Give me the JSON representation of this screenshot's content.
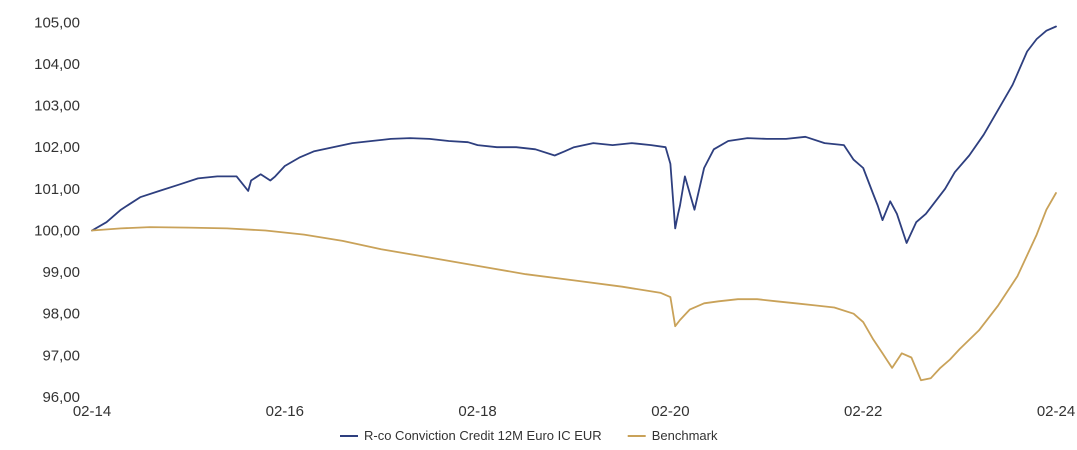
{
  "chart_data": {
    "type": "line",
    "title": "",
    "xlabel": "",
    "ylabel": "",
    "x_tick_labels": [
      "02-14",
      "02-16",
      "02-18",
      "02-20",
      "02-22",
      "02-24"
    ],
    "x_tick_values": [
      2014.0,
      2016.0,
      2018.0,
      2020.0,
      2022.0,
      2024.0
    ],
    "y_tick_labels": [
      "96,00",
      "97,00",
      "98,00",
      "99,00",
      "100,00",
      "101,00",
      "102,00",
      "103,00",
      "104,00",
      "105,00"
    ],
    "y_tick_values": [
      96,
      97,
      98,
      99,
      100,
      101,
      102,
      103,
      104,
      105
    ],
    "xlim": [
      2014.0,
      2024.0
    ],
    "ylim": [
      96,
      105.2
    ],
    "grid": false,
    "legend_position": "bottom-center",
    "series": [
      {
        "name": "R-co Conviction Credit 12M Euro IC EUR",
        "color": "#2E3F7F",
        "x": [
          2014.0,
          2014.15,
          2014.3,
          2014.5,
          2014.7,
          2014.9,
          2015.1,
          2015.3,
          2015.5,
          2015.62,
          2015.65,
          2015.75,
          2015.85,
          2015.9,
          2016.0,
          2016.15,
          2016.3,
          2016.5,
          2016.7,
          2016.9,
          2017.1,
          2017.3,
          2017.5,
          2017.7,
          2017.9,
          2018.0,
          2018.2,
          2018.4,
          2018.6,
          2018.8,
          2018.9,
          2019.0,
          2019.2,
          2019.4,
          2019.6,
          2019.8,
          2019.95,
          2020.0,
          2020.05,
          2020.08,
          2020.1,
          2020.15,
          2020.25,
          2020.35,
          2020.45,
          2020.6,
          2020.8,
          2021.0,
          2021.2,
          2021.4,
          2021.6,
          2021.8,
          2021.9,
          2022.0,
          2022.05,
          2022.1,
          2022.15,
          2022.2,
          2022.28,
          2022.35,
          2022.45,
          2022.55,
          2022.65,
          2022.75,
          2022.85,
          2022.95,
          2023.1,
          2023.25,
          2023.4,
          2023.55,
          2023.7,
          2023.8,
          2023.9,
          2024.0
        ],
        "y": [
          100.0,
          100.2,
          100.5,
          100.8,
          100.95,
          101.1,
          101.25,
          101.3,
          101.3,
          100.95,
          101.2,
          101.35,
          101.2,
          101.3,
          101.55,
          101.75,
          101.9,
          102.0,
          102.1,
          102.15,
          102.2,
          102.22,
          102.2,
          102.15,
          102.12,
          102.05,
          102.0,
          102.0,
          101.95,
          101.8,
          101.9,
          102.0,
          102.1,
          102.05,
          102.1,
          102.05,
          102.0,
          101.6,
          100.05,
          100.4,
          100.6,
          101.3,
          100.5,
          101.5,
          101.95,
          102.15,
          102.22,
          102.2,
          102.2,
          102.25,
          102.1,
          102.05,
          101.7,
          101.5,
          101.2,
          100.9,
          100.6,
          100.25,
          100.7,
          100.4,
          99.7,
          100.2,
          100.4,
          100.7,
          101.0,
          101.4,
          101.8,
          102.3,
          102.9,
          103.5,
          104.3,
          104.6,
          104.8,
          104.9
        ]
      },
      {
        "name": "Benchmark",
        "color": "#C9A259",
        "x": [
          2014.0,
          2014.3,
          2014.6,
          2015.0,
          2015.4,
          2015.8,
          2016.2,
          2016.6,
          2017.0,
          2017.5,
          2018.0,
          2018.5,
          2019.0,
          2019.5,
          2019.9,
          2020.0,
          2020.05,
          2020.1,
          2020.2,
          2020.35,
          2020.5,
          2020.7,
          2020.9,
          2021.1,
          2021.3,
          2021.5,
          2021.7,
          2021.9,
          2022.0,
          2022.1,
          2022.2,
          2022.3,
          2022.4,
          2022.5,
          2022.6,
          2022.7,
          2022.8,
          2022.9,
          2023.0,
          2023.2,
          2023.4,
          2023.6,
          2023.8,
          2023.9,
          2024.0
        ],
        "y": [
          100.0,
          100.05,
          100.08,
          100.07,
          100.05,
          100.0,
          99.9,
          99.75,
          99.55,
          99.35,
          99.15,
          98.95,
          98.8,
          98.65,
          98.5,
          98.4,
          97.7,
          97.85,
          98.1,
          98.25,
          98.3,
          98.35,
          98.35,
          98.3,
          98.25,
          98.2,
          98.15,
          98.0,
          97.8,
          97.4,
          97.05,
          96.7,
          97.05,
          96.95,
          96.4,
          96.45,
          96.7,
          96.9,
          97.15,
          97.6,
          98.2,
          98.9,
          99.9,
          100.5,
          100.9
        ]
      }
    ]
  }
}
